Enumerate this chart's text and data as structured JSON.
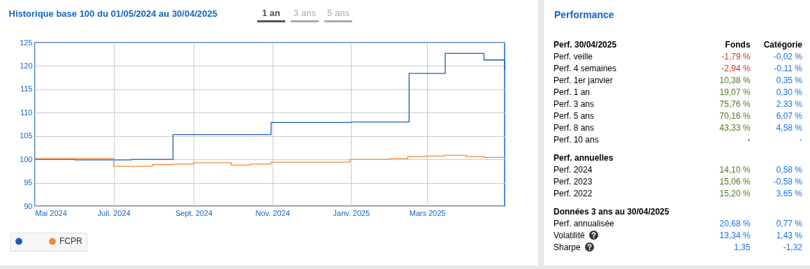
{
  "chart_data": [
    {
      "type": "step",
      "title": "Historique base 100 du 01/05/2024 au 30/04/2025",
      "annotations": [
        "1 an",
        "3 ans",
        "5 ans"
      ],
      "xlim": [
        "2024-05-01",
        "2025-04-30"
      ],
      "xticks": [
        {
          "value": "2024-05-01",
          "label": "Mai 2024"
        },
        {
          "value": "2024-07-01",
          "label": "Juil. 2024"
        },
        {
          "value": "2024-09-01",
          "label": "Sept. 2024"
        },
        {
          "value": "2024-11-01",
          "label": "Nov. 2024"
        },
        {
          "value": "2025-01-01",
          "label": "Janv. 2025"
        },
        {
          "value": "2025-03-01",
          "label": "Mars 2025"
        }
      ],
      "ylim": [
        90,
        125
      ],
      "yticks": [
        90,
        95,
        100,
        105,
        110,
        115,
        120,
        125
      ],
      "grid": true,
      "legend": "bottom left",
      "series": [
        {
          "color": "#1a5fb4",
          "x": [
            "2024-05-01",
            "2024-06-01",
            "2024-07-15",
            "2024-08-16",
            "2024-10-31",
            "2024-12-01",
            "2025-01-01",
            "2025-02-15",
            "2025-03-15",
            "2025-04-14",
            "2025-04-29",
            "2025-04-30"
          ],
          "values": [
            100.0,
            99.9,
            100.0,
            105.3,
            107.9,
            107.9,
            108.0,
            118.4,
            122.7,
            121.3,
            121.3,
            119.1
          ]
        },
        {
          "name": "FCPR",
          "color": "#f5893a",
          "x": [
            "2024-05-01",
            "2024-07-01",
            "2024-07-31",
            "2024-08-16",
            "2024-09-01",
            "2024-09-30",
            "2024-10-15",
            "2024-10-31",
            "2024-12-31",
            "2025-01-31",
            "2025-02-14",
            "2025-02-28",
            "2025-03-14",
            "2025-03-31",
            "2025-04-14",
            "2025-04-30"
          ],
          "values": [
            100.2,
            98.5,
            98.9,
            99.0,
            99.3,
            98.8,
            99.0,
            99.4,
            100.0,
            100.2,
            100.6,
            100.7,
            100.9,
            100.6,
            100.4,
            100.4
          ]
        }
      ]
    },
    {
      "type": "other",
      "title": "Performance",
      "categories": [
        "Perf. 30/04/2025",
        "Fonds",
        "Catégorie"
      ],
      "y_categories": [
        "Perf. veille",
        "Perf. 4 semaines",
        "Perf. 1er janvier",
        "Perf. 1 an",
        "Perf. 3 ans",
        "Perf. 5 ans",
        "Perf. 8 ans",
        "Perf. 10 ans",
        "Perf. annuelles",
        "Perf. 2024",
        "Perf. 2023",
        "Perf. 2022",
        "Données 3 ans au 30/04/2025",
        "Perf. annualisée",
        "Volatilité",
        "Sharpe"
      ],
      "cell_labels": [
        [
          "-1,79 %",
          "-0,02 %"
        ],
        [
          "-2,94 %",
          "-0,11 %"
        ],
        [
          "10,38 %",
          "0,35 %"
        ],
        [
          "19,07 %",
          "0,30 %"
        ],
        [
          "75,76 %",
          "2,33 %"
        ],
        [
          "70,16 %",
          "6,07 %"
        ],
        [
          "43,33 %",
          "4,58 %"
        ],
        [
          "-",
          "-"
        ],
        [
          null,
          null
        ],
        [
          "14,10 %",
          "0,58 %"
        ],
        [
          "15,06 %",
          "-0,58 %"
        ],
        [
          "15,20 %",
          "3,65 %"
        ],
        [
          null,
          null
        ],
        [
          "20,68 %",
          "0,77 %"
        ],
        [
          "13,34 %",
          "1,43 %"
        ],
        [
          "1,35",
          "-1,32"
        ]
      ],
      "colors": [
        [
          "#c0392b",
          "#1a73e8"
        ],
        [
          "#c0392b",
          "#1a73e8"
        ],
        [
          "#4d7a1f",
          "#1a73e8"
        ],
        [
          "#4d7a1f",
          "#1a73e8"
        ],
        [
          "#4d7a1f",
          "#1a73e8"
        ],
        [
          "#4d7a1f",
          "#1a73e8"
        ],
        [
          "#4d7a1f",
          "#1a73e8"
        ],
        [
          "#000000",
          "#1a73e8"
        ],
        [
          null,
          null
        ],
        [
          "#4d7a1f",
          "#1a73e8"
        ],
        [
          "#4d7a1f",
          "#1a73e8"
        ],
        [
          "#4d7a1f",
          "#1a73e8"
        ],
        [
          null,
          null
        ],
        [
          "#1a73e8",
          "#1a73e8"
        ],
        [
          "#1a73e8",
          "#1a73e8"
        ],
        [
          "#1a73e8",
          "#1a73e8"
        ]
      ]
    }
  ]
}
